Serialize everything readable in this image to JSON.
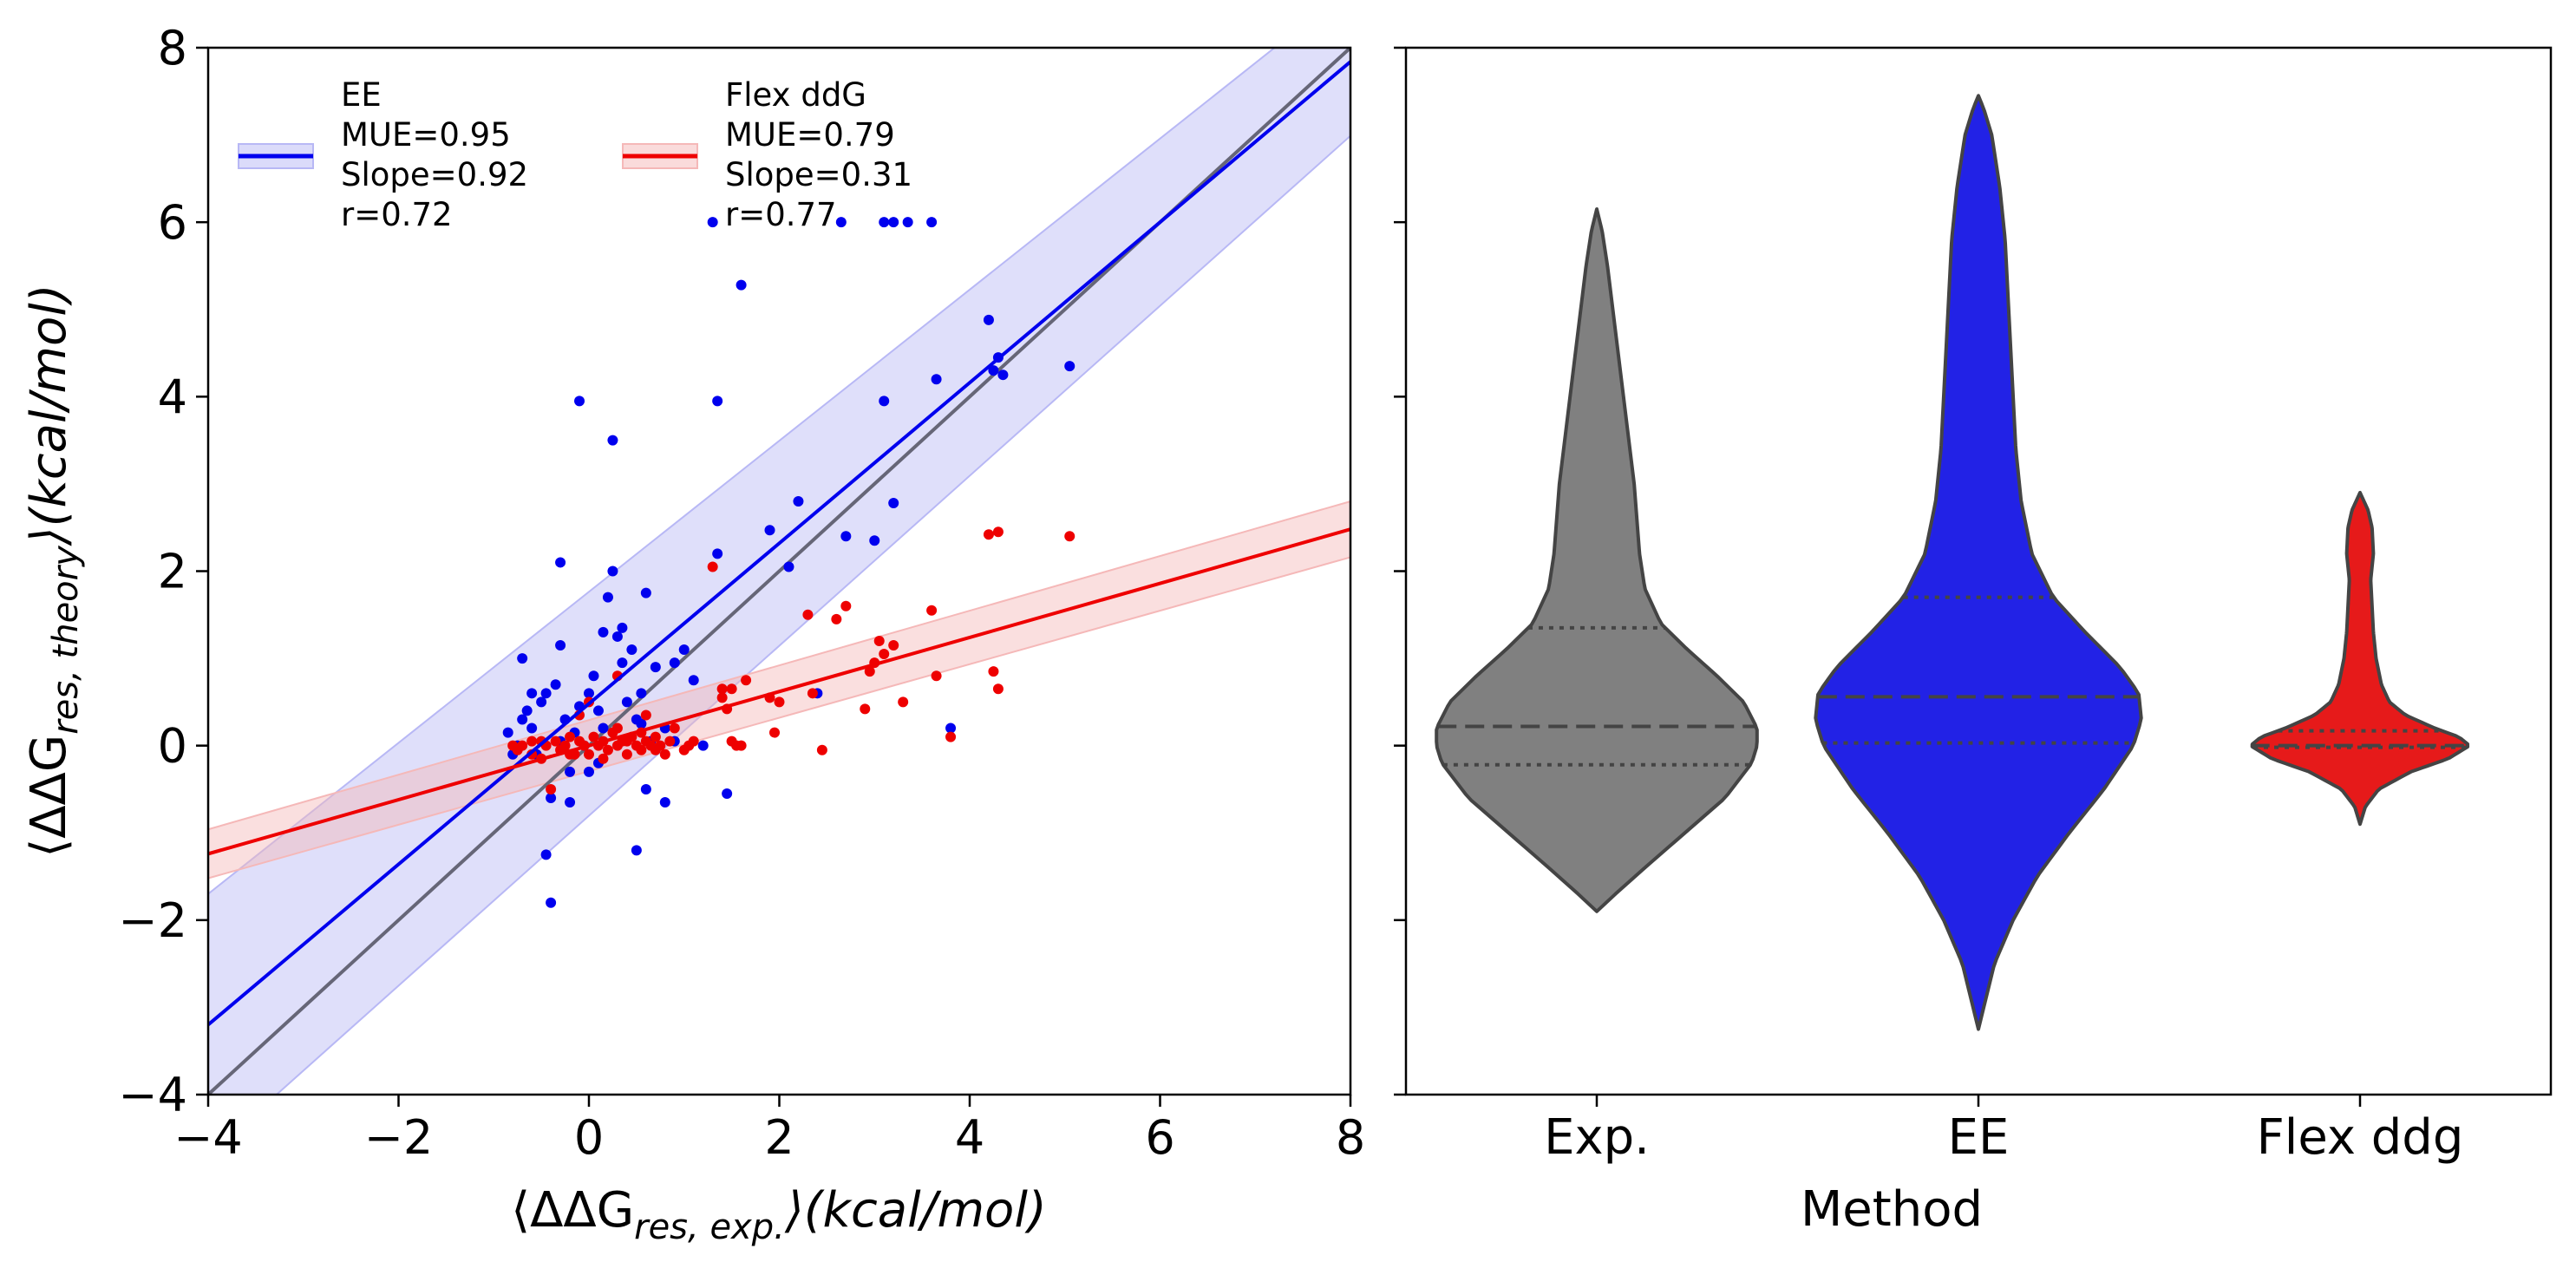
{
  "chart_data": [
    {
      "type": "scatter",
      "xlabel_pre": "⟨ΔΔG",
      "xlabel_sub": "res, exp.",
      "xlabel_post": "⟩(kcal/mol)",
      "ylabel_pre": "⟨ΔΔG",
      "ylabel_sub": "res, theory",
      "ylabel_post": "⟩(kcal/mol)",
      "xlim": [
        -4,
        8
      ],
      "ylim": [
        -4,
        8
      ],
      "xticks": [
        -4,
        -2,
        0,
        2,
        4,
        6,
        8
      ],
      "yticks": [
        -4,
        -2,
        0,
        2,
        4,
        6,
        8
      ],
      "xtick_labels": [
        "−4",
        "−2",
        "0",
        "2",
        "4",
        "6",
        "8"
      ],
      "ytick_labels": [
        "−4",
        "−2",
        "0",
        "2",
        "4",
        "6",
        "8"
      ],
      "identity_line": {
        "color": "#666677"
      },
      "legend_position": "top-left",
      "series": [
        {
          "name": "EE",
          "legend_lines": [
            "EE",
            "MUE=0.95",
            "Slope=0.92",
            "r=0.72"
          ],
          "color": "#0000ee",
          "band_color": "#b8b8f5",
          "fit": {
            "slope": 0.92,
            "intercept": 0.48
          },
          "band_halfwidth_left": 1.5,
          "band_halfwidth_right": 0.85,
          "points": [
            [
              -0.8,
              -0.1
            ],
            [
              -0.75,
              0.0
            ],
            [
              -0.7,
              0.3
            ],
            [
              -0.65,
              0.4
            ],
            [
              -0.7,
              1.0
            ],
            [
              -0.6,
              0.2
            ],
            [
              -0.55,
              -0.1
            ],
            [
              -0.5,
              0.5
            ],
            [
              -0.45,
              0.6
            ],
            [
              -0.4,
              -0.6
            ],
            [
              -0.35,
              0.7
            ],
            [
              -0.3,
              2.1
            ],
            [
              -0.3,
              1.15
            ],
            [
              -0.25,
              0.3
            ],
            [
              -0.2,
              -0.65
            ],
            [
              -0.1,
              0.45
            ],
            [
              -0.05,
              0.0
            ],
            [
              0.0,
              0.6
            ],
            [
              0.05,
              0.8
            ],
            [
              0.1,
              0.4
            ],
            [
              0.1,
              -0.2
            ],
            [
              0.15,
              1.3
            ],
            [
              0.2,
              1.7
            ],
            [
              0.25,
              2.0
            ],
            [
              0.3,
              1.25
            ],
            [
              0.35,
              1.35
            ],
            [
              0.4,
              0.5
            ],
            [
              0.45,
              1.1
            ],
            [
              0.5,
              0.3
            ],
            [
              0.55,
              0.6
            ],
            [
              0.6,
              -0.5
            ],
            [
              0.7,
              0.9
            ],
            [
              0.8,
              0.2
            ],
            [
              0.9,
              0.95
            ],
            [
              1.0,
              1.1
            ],
            [
              1.1,
              0.75
            ],
            [
              -0.45,
              -1.25
            ],
            [
              -0.4,
              -1.8
            ],
            [
              0.5,
              -1.2
            ],
            [
              0.8,
              -0.65
            ],
            [
              0.6,
              1.75
            ],
            [
              0.25,
              3.5
            ],
            [
              -0.1,
              3.95
            ],
            [
              1.35,
              3.95
            ],
            [
              1.3,
              6.0
            ],
            [
              1.6,
              5.28
            ],
            [
              2.1,
              2.05
            ],
            [
              2.2,
              2.8
            ],
            [
              1.9,
              2.47
            ],
            [
              2.4,
              0.6
            ],
            [
              2.65,
              6.0
            ],
            [
              2.7,
              2.4
            ],
            [
              3.0,
              2.35
            ],
            [
              3.1,
              3.95
            ],
            [
              3.1,
              6.0
            ],
            [
              3.2,
              6.0
            ],
            [
              3.35,
              6.0
            ],
            [
              3.6,
              6.0
            ],
            [
              3.2,
              2.78
            ],
            [
              3.65,
              4.2
            ],
            [
              3.8,
              0.2
            ],
            [
              4.2,
              4.88
            ],
            [
              4.3,
              4.45
            ],
            [
              4.35,
              4.25
            ],
            [
              4.25,
              4.3
            ],
            [
              5.05,
              4.35
            ],
            [
              1.45,
              -0.55
            ],
            [
              1.35,
              2.2
            ],
            [
              -0.2,
              -0.3
            ],
            [
              0.0,
              -0.3
            ],
            [
              -0.6,
              0.6
            ],
            [
              -0.85,
              0.15
            ],
            [
              0.35,
              0.95
            ],
            [
              0.15,
              0.2
            ],
            [
              -0.15,
              0.15
            ],
            [
              0.65,
              0.05
            ],
            [
              0.9,
              0.05
            ],
            [
              -0.3,
              0.05
            ],
            [
              1.2,
              0.0
            ],
            [
              0.55,
              0.25
            ]
          ]
        },
        {
          "name": "Flex ddG",
          "legend_lines": [
            "Flex ddG",
            "MUE=0.79",
            "Slope=0.31",
            "r=0.77"
          ],
          "color": "#ee0000",
          "band_color": "#f5b8b8",
          "fit": {
            "slope": 0.31,
            "intercept": 0.0
          },
          "band_halfwidth_left": 0.28,
          "band_halfwidth_right": 0.32,
          "points": [
            [
              -0.8,
              0.0
            ],
            [
              -0.75,
              -0.05
            ],
            [
              -0.7,
              0.0
            ],
            [
              -0.6,
              -0.1
            ],
            [
              -0.5,
              0.05
            ],
            [
              -0.45,
              0.0
            ],
            [
              -0.4,
              -0.5
            ],
            [
              -0.35,
              0.05
            ],
            [
              -0.3,
              -0.05
            ],
            [
              -0.25,
              0.0
            ],
            [
              -0.2,
              0.1
            ],
            [
              -0.15,
              -0.1
            ],
            [
              -0.1,
              0.05
            ],
            [
              -0.05,
              0.0
            ],
            [
              0.0,
              -0.1
            ],
            [
              0.05,
              0.1
            ],
            [
              0.1,
              0.0
            ],
            [
              0.15,
              0.05
            ],
            [
              0.2,
              -0.05
            ],
            [
              0.25,
              0.15
            ],
            [
              0.3,
              0.0
            ],
            [
              0.35,
              0.05
            ],
            [
              0.4,
              -0.1
            ],
            [
              0.45,
              0.1
            ],
            [
              0.5,
              0.0
            ],
            [
              0.55,
              -0.05
            ],
            [
              0.6,
              0.05
            ],
            [
              0.65,
              0.0
            ],
            [
              0.7,
              -0.05
            ],
            [
              0.75,
              0.0
            ],
            [
              0.8,
              -0.1
            ],
            [
              0.85,
              0.05
            ],
            [
              0.9,
              0.2
            ],
            [
              1.0,
              -0.05
            ],
            [
              1.05,
              0.0
            ],
            [
              0.3,
              0.8
            ],
            [
              0.0,
              0.5
            ],
            [
              -0.1,
              0.35
            ],
            [
              0.6,
              0.35
            ],
            [
              0.3,
              0.2
            ],
            [
              1.4,
              0.55
            ],
            [
              1.4,
              0.65
            ],
            [
              1.45,
              0.42
            ],
            [
              1.5,
              0.05
            ],
            [
              1.55,
              0.0
            ],
            [
              1.6,
              0.0
            ],
            [
              1.5,
              0.65
            ],
            [
              1.65,
              0.75
            ],
            [
              1.9,
              0.55
            ],
            [
              1.95,
              0.15
            ],
            [
              2.0,
              0.5
            ],
            [
              2.3,
              1.5
            ],
            [
              2.35,
              0.6
            ],
            [
              2.45,
              -0.05
            ],
            [
              2.6,
              1.45
            ],
            [
              2.7,
              1.6
            ],
            [
              2.9,
              0.42
            ],
            [
              2.95,
              0.85
            ],
            [
              3.0,
              0.95
            ],
            [
              3.05,
              1.2
            ],
            [
              3.1,
              1.05
            ],
            [
              3.2,
              1.15
            ],
            [
              3.3,
              0.5
            ],
            [
              3.6,
              1.55
            ],
            [
              3.65,
              0.8
            ],
            [
              3.8,
              0.1
            ],
            [
              4.25,
              0.85
            ],
            [
              4.3,
              0.65
            ],
            [
              4.3,
              2.45
            ],
            [
              4.2,
              2.42
            ],
            [
              5.05,
              2.4
            ],
            [
              1.3,
              2.05
            ],
            [
              -0.6,
              0.05
            ],
            [
              -0.2,
              -0.1
            ],
            [
              0.15,
              -0.15
            ],
            [
              0.4,
              0.05
            ],
            [
              0.7,
              0.1
            ],
            [
              1.1,
              0.05
            ],
            [
              -0.5,
              -0.15
            ],
            [
              0.55,
              0.15
            ]
          ]
        }
      ]
    },
    {
      "type": "violin",
      "xlabel": "Method",
      "ylim": [
        -4,
        8
      ],
      "yticks": [
        -4,
        -2,
        0,
        2,
        4,
        6,
        8
      ],
      "categories": [
        "Exp.",
        "EE",
        "Flex ddg"
      ],
      "violins": [
        {
          "category": "Exp.",
          "color": "#808080",
          "min": -1.9,
          "max": 6.15,
          "median": 0.22,
          "q1": -0.22,
          "q3": 1.35,
          "halfwidth_profile": [
            [
              -1.9,
              0.0
            ],
            [
              -1.7,
              0.07
            ],
            [
              -1.4,
              0.18
            ],
            [
              -1.0,
              0.33
            ],
            [
              -0.6,
              0.48
            ],
            [
              -0.2,
              0.58
            ],
            [
              0.0,
              0.6
            ],
            [
              0.2,
              0.6
            ],
            [
              0.5,
              0.55
            ],
            [
              0.8,
              0.45
            ],
            [
              1.1,
              0.34
            ],
            [
              1.4,
              0.24
            ],
            [
              1.8,
              0.18
            ],
            [
              2.2,
              0.16
            ],
            [
              2.6,
              0.15
            ],
            [
              3.0,
              0.14
            ],
            [
              3.5,
              0.12
            ],
            [
              4.0,
              0.1
            ],
            [
              4.5,
              0.08
            ],
            [
              5.0,
              0.06
            ],
            [
              5.5,
              0.04
            ],
            [
              5.9,
              0.02
            ],
            [
              6.15,
              0.0
            ]
          ]
        },
        {
          "category": "EE",
          "color": "#2222e6",
          "min": -3.25,
          "max": 7.45,
          "median": 0.56,
          "q1": 0.03,
          "q3": 1.7,
          "halfwidth_profile": [
            [
              -3.25,
              0.0
            ],
            [
              -3.0,
              0.02
            ],
            [
              -2.5,
              0.06
            ],
            [
              -2.0,
              0.13
            ],
            [
              -1.5,
              0.22
            ],
            [
              -1.0,
              0.34
            ],
            [
              -0.5,
              0.47
            ],
            [
              0.0,
              0.58
            ],
            [
              0.3,
              0.61
            ],
            [
              0.6,
              0.6
            ],
            [
              0.9,
              0.53
            ],
            [
              1.3,
              0.4
            ],
            [
              1.7,
              0.28
            ],
            [
              2.2,
              0.2
            ],
            [
              2.8,
              0.16
            ],
            [
              3.4,
              0.14
            ],
            [
              4.0,
              0.13
            ],
            [
              4.6,
              0.12
            ],
            [
              5.2,
              0.11
            ],
            [
              5.8,
              0.1
            ],
            [
              6.4,
              0.08
            ],
            [
              7.0,
              0.05
            ],
            [
              7.3,
              0.02
            ],
            [
              7.45,
              0.0
            ]
          ]
        },
        {
          "category": "Flex ddg",
          "color": "#e61a1a",
          "min": -0.9,
          "max": 2.9,
          "median": 0.0,
          "q1": -0.02,
          "q3": 0.17,
          "halfwidth_profile": [
            [
              -0.9,
              0.0
            ],
            [
              -0.7,
              0.02
            ],
            [
              -0.5,
              0.07
            ],
            [
              -0.3,
              0.19
            ],
            [
              -0.15,
              0.33
            ],
            [
              0.0,
              0.41
            ],
            [
              0.1,
              0.37
            ],
            [
              0.2,
              0.28
            ],
            [
              0.35,
              0.17
            ],
            [
              0.5,
              0.11
            ],
            [
              0.7,
              0.08
            ],
            [
              1.0,
              0.06
            ],
            [
              1.3,
              0.05
            ],
            [
              1.6,
              0.045
            ],
            [
              1.9,
              0.04
            ],
            [
              2.2,
              0.05
            ],
            [
              2.5,
              0.045
            ],
            [
              2.7,
              0.03
            ],
            [
              2.9,
              0.0
            ]
          ]
        }
      ]
    }
  ]
}
